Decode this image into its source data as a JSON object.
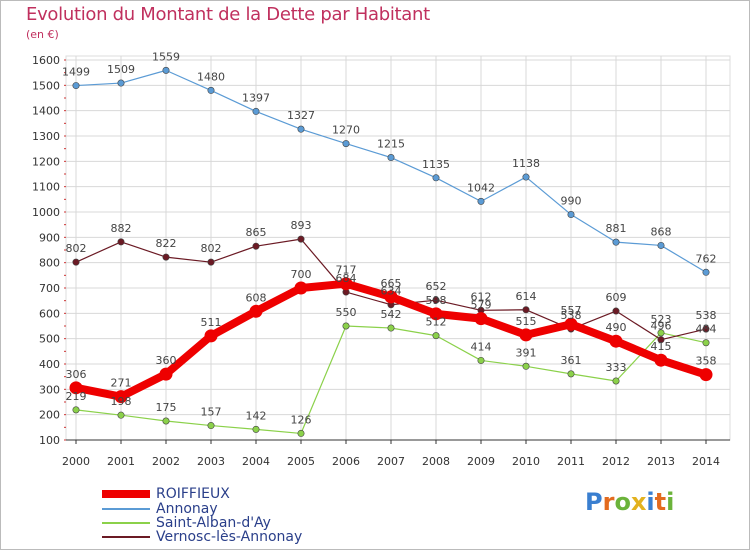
{
  "title": "Evolution du Montant de la Dette par Habitant",
  "subtitle": "(en €)",
  "logo_text": "Proxiti",
  "chart_data": {
    "type": "line",
    "title": "Evolution du Montant de la Dette par Habitant",
    "subtitle": "(en €)",
    "x": [
      "2000",
      "2001",
      "2002",
      "2003",
      "2004",
      "2005",
      "2006",
      "2007",
      "2008",
      "2009",
      "2010",
      "2011",
      "2012",
      "2013",
      "2014"
    ],
    "yticks": [
      100,
      200,
      300,
      400,
      500,
      600,
      700,
      800,
      900,
      1000,
      1100,
      1200,
      1300,
      1400,
      1500,
      1600
    ],
    "ylim": [
      100,
      1600
    ],
    "grid": true,
    "legend_position": "bottom-left",
    "series": [
      {
        "name": "ROIFFIEUX",
        "color": "#ee0000",
        "values": [
          306,
          271,
          360,
          511,
          608,
          700,
          717,
          665,
          598,
          579,
          515,
          557,
          490,
          415,
          358
        ]
      },
      {
        "name": "Annonay",
        "color": "#5b9bd5",
        "values": [
          1499,
          1509,
          1559,
          1480,
          1397,
          1327,
          1270,
          1215,
          1135,
          1042,
          1138,
          990,
          881,
          868,
          762
        ]
      },
      {
        "name": "Saint-Alban-d'Ay",
        "color": "#8bd14a",
        "values": [
          219,
          198,
          175,
          157,
          142,
          126,
          550,
          542,
          512,
          414,
          391,
          361,
          333,
          523,
          484
        ]
      },
      {
        "name": "Vernosc-lès-Annonay",
        "color": "#6b1a24",
        "values": [
          802,
          882,
          822,
          802,
          865,
          893,
          684,
          634,
          652,
          612,
          614,
          538,
          609,
          496,
          538
        ]
      }
    ]
  }
}
